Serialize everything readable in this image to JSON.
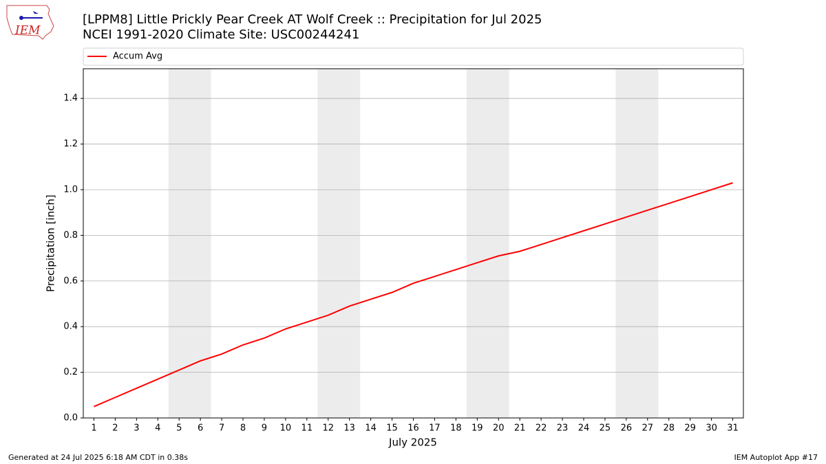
{
  "chart_data": {
    "type": "line",
    "title": "[LPPM8] Little Prickly Pear Creek  AT Wolf Creek :: Precipitation for Jul 2025",
    "subtitle": "NCEI 1991-2020 Climate Site: USC00244241",
    "xlabel": "July 2025",
    "ylabel": "Precipitation [inch]",
    "x": [
      1,
      2,
      3,
      4,
      5,
      6,
      7,
      8,
      9,
      10,
      11,
      12,
      13,
      14,
      15,
      16,
      17,
      18,
      19,
      20,
      21,
      22,
      23,
      24,
      25,
      26,
      27,
      28,
      29,
      30,
      31
    ],
    "series": [
      {
        "name": "Accum Avg",
        "color": "#ff0000",
        "values": [
          0.05,
          0.09,
          0.13,
          0.17,
          0.21,
          0.25,
          0.28,
          0.32,
          0.35,
          0.39,
          0.42,
          0.45,
          0.49,
          0.52,
          0.55,
          0.59,
          0.62,
          0.65,
          0.68,
          0.71,
          0.73,
          0.76,
          0.79,
          0.82,
          0.85,
          0.88,
          0.91,
          0.94,
          0.97,
          1.0,
          1.03
        ]
      }
    ],
    "xlim": [
      0.5,
      31.5
    ],
    "ylim": [
      0,
      1.53
    ],
    "xticks": [
      1,
      2,
      3,
      4,
      5,
      6,
      7,
      8,
      9,
      10,
      11,
      12,
      13,
      14,
      15,
      16,
      17,
      18,
      19,
      20,
      21,
      22,
      23,
      24,
      25,
      26,
      27,
      28,
      29,
      30,
      31
    ],
    "yticks": [
      {
        "value": 0,
        "label": "0.0"
      },
      0.2,
      0.4,
      0.6,
      0.8,
      {
        "value": 1,
        "label": "1.0"
      },
      1.2,
      1.4
    ],
    "grid": true,
    "legend": "top-left",
    "shaded_spans": [
      [
        4.5,
        6.5
      ],
      [
        11.5,
        13.5
      ],
      [
        18.5,
        20.5
      ],
      [
        25.5,
        27.5
      ]
    ],
    "shade_color": "#ececec"
  },
  "logo_text": "IEM",
  "footer": {
    "left": "Generated at 24 Jul 2025 6:18 AM CDT in 0.38s",
    "right": "IEM Autoplot App #17"
  }
}
